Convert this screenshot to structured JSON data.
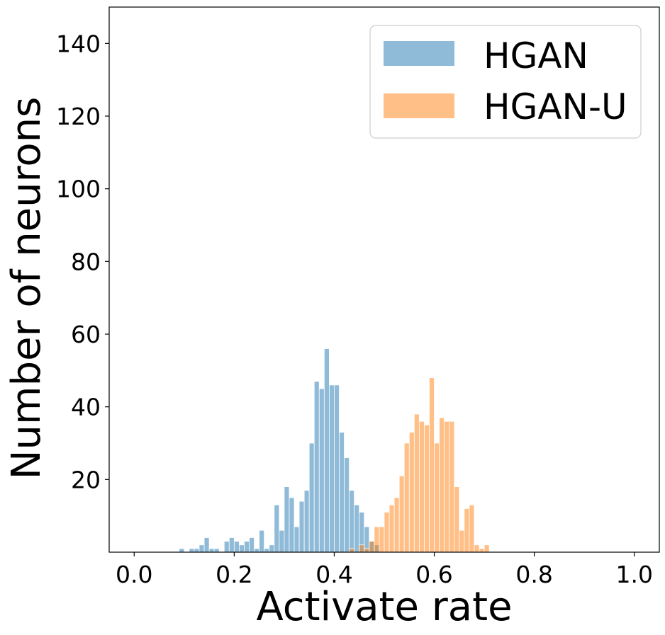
{
  "chart_data": {
    "type": "histogram",
    "title": "",
    "xlabel": "Activate rate",
    "ylabel": "Number of neurons",
    "xlim": [
      -0.05,
      1.05
    ],
    "ylim": [
      0,
      150
    ],
    "bin_width": 0.01,
    "x_ticks": [
      0.0,
      0.2,
      0.4,
      0.6,
      0.8,
      1.0
    ],
    "x_tick_labels": [
      "0.0",
      "0.2",
      "0.4",
      "0.6",
      "0.8",
      "1.0"
    ],
    "y_ticks": [
      20,
      40,
      60,
      80,
      100,
      120,
      140
    ],
    "y_tick_labels": [
      "20",
      "40",
      "60",
      "80",
      "100",
      "120",
      "140"
    ],
    "legend_position": "top-right",
    "series": [
      {
        "name": "HGAN",
        "color": "#1f77b4",
        "bins": [
          {
            "x": 0.09,
            "count": 1
          },
          {
            "x": 0.11,
            "count": 1
          },
          {
            "x": 0.12,
            "count": 1
          },
          {
            "x": 0.13,
            "count": 2
          },
          {
            "x": 0.14,
            "count": 4
          },
          {
            "x": 0.15,
            "count": 1
          },
          {
            "x": 0.16,
            "count": 1
          },
          {
            "x": 0.18,
            "count": 3
          },
          {
            "x": 0.19,
            "count": 4
          },
          {
            "x": 0.2,
            "count": 3
          },
          {
            "x": 0.21,
            "count": 2
          },
          {
            "x": 0.22,
            "count": 3
          },
          {
            "x": 0.23,
            "count": 4
          },
          {
            "x": 0.24,
            "count": 1
          },
          {
            "x": 0.25,
            "count": 6
          },
          {
            "x": 0.26,
            "count": 1
          },
          {
            "x": 0.27,
            "count": 2
          },
          {
            "x": 0.28,
            "count": 13
          },
          {
            "x": 0.29,
            "count": 6
          },
          {
            "x": 0.3,
            "count": 18
          },
          {
            "x": 0.31,
            "count": 15
          },
          {
            "x": 0.32,
            "count": 7
          },
          {
            "x": 0.33,
            "count": 14
          },
          {
            "x": 0.34,
            "count": 17
          },
          {
            "x": 0.35,
            "count": 30
          },
          {
            "x": 0.36,
            "count": 47
          },
          {
            "x": 0.37,
            "count": 45
          },
          {
            "x": 0.38,
            "count": 56
          },
          {
            "x": 0.39,
            "count": 46
          },
          {
            "x": 0.4,
            "count": 46
          },
          {
            "x": 0.41,
            "count": 33
          },
          {
            "x": 0.42,
            "count": 26
          },
          {
            "x": 0.43,
            "count": 17
          },
          {
            "x": 0.44,
            "count": 13
          },
          {
            "x": 0.45,
            "count": 11
          },
          {
            "x": 0.46,
            "count": 7
          },
          {
            "x": 0.47,
            "count": 3
          },
          {
            "x": 0.48,
            "count": 2
          }
        ]
      },
      {
        "name": "HGAN-U",
        "color": "#ff7f0e",
        "bins": [
          {
            "x": 0.43,
            "count": 1
          },
          {
            "x": 0.45,
            "count": 2
          },
          {
            "x": 0.46,
            "count": 1
          },
          {
            "x": 0.47,
            "count": 3
          },
          {
            "x": 0.48,
            "count": 7
          },
          {
            "x": 0.49,
            "count": 7
          },
          {
            "x": 0.5,
            "count": 11
          },
          {
            "x": 0.51,
            "count": 13
          },
          {
            "x": 0.52,
            "count": 15
          },
          {
            "x": 0.53,
            "count": 21
          },
          {
            "x": 0.54,
            "count": 30
          },
          {
            "x": 0.55,
            "count": 33
          },
          {
            "x": 0.56,
            "count": 38
          },
          {
            "x": 0.57,
            "count": 36
          },
          {
            "x": 0.58,
            "count": 35
          },
          {
            "x": 0.59,
            "count": 48
          },
          {
            "x": 0.6,
            "count": 30
          },
          {
            "x": 0.61,
            "count": 37
          },
          {
            "x": 0.62,
            "count": 36
          },
          {
            "x": 0.63,
            "count": 36
          },
          {
            "x": 0.64,
            "count": 18
          },
          {
            "x": 0.65,
            "count": 6
          },
          {
            "x": 0.66,
            "count": 12
          },
          {
            "x": 0.67,
            "count": 13
          },
          {
            "x": 0.68,
            "count": 2
          },
          {
            "x": 0.69,
            "count": 1
          },
          {
            "x": 0.7,
            "count": 2
          }
        ]
      }
    ]
  }
}
